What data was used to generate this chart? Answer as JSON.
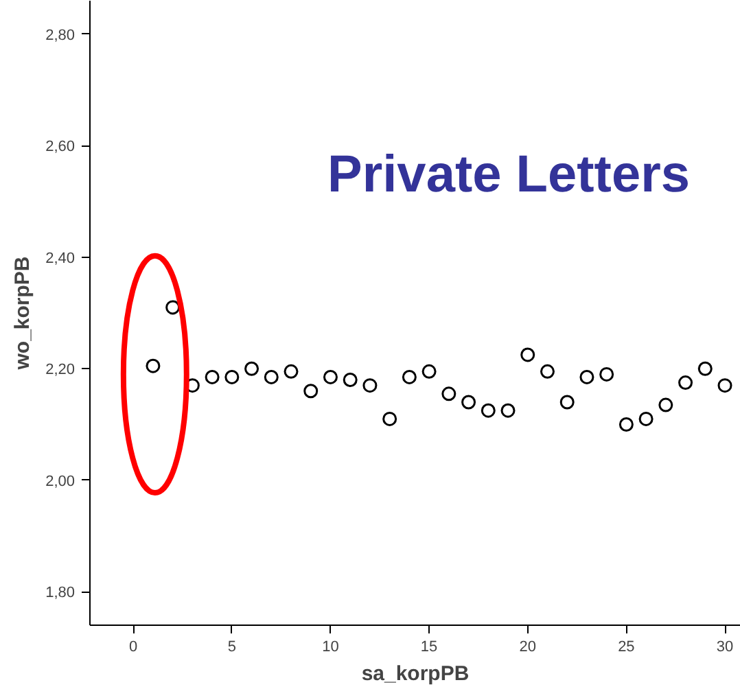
{
  "chart_data": {
    "type": "scatter",
    "title": "Private Letters",
    "xlabel": "sa_korpPB",
    "ylabel": "wo_korpPB",
    "x": [
      1,
      2,
      3,
      4,
      5,
      6,
      7,
      8,
      9,
      10,
      11,
      12,
      13,
      14,
      15,
      16,
      17,
      18,
      19,
      20,
      21,
      22,
      23,
      24,
      25,
      26,
      27,
      28,
      29,
      30
    ],
    "values": [
      2.205,
      2.31,
      2.17,
      2.185,
      2.185,
      2.2,
      2.185,
      2.195,
      2.16,
      2.185,
      2.18,
      2.17,
      2.11,
      2.185,
      2.195,
      2.155,
      2.14,
      2.125,
      2.125,
      2.225,
      2.195,
      2.14,
      2.185,
      2.19,
      2.1,
      2.11,
      2.135,
      2.175,
      2.2,
      2.17
    ],
    "color": "#000000",
    "marker": "circle",
    "grid": false,
    "xlim": [
      -2.2,
      30.8
    ],
    "ylim": [
      1.74,
      2.86
    ],
    "xticks": [
      0,
      5,
      10,
      15,
      20,
      25,
      30
    ],
    "yticks": [
      {
        "value": 1.8,
        "label": "1,80"
      },
      {
        "value": 2.0,
        "label": "2,00"
      },
      {
        "value": 2.2,
        "label": "2,20"
      },
      {
        "value": 2.4,
        "label": "2,40"
      },
      {
        "value": 2.6,
        "label": "2,60"
      },
      {
        "value": 2.8,
        "label": "2,80"
      }
    ]
  }
}
